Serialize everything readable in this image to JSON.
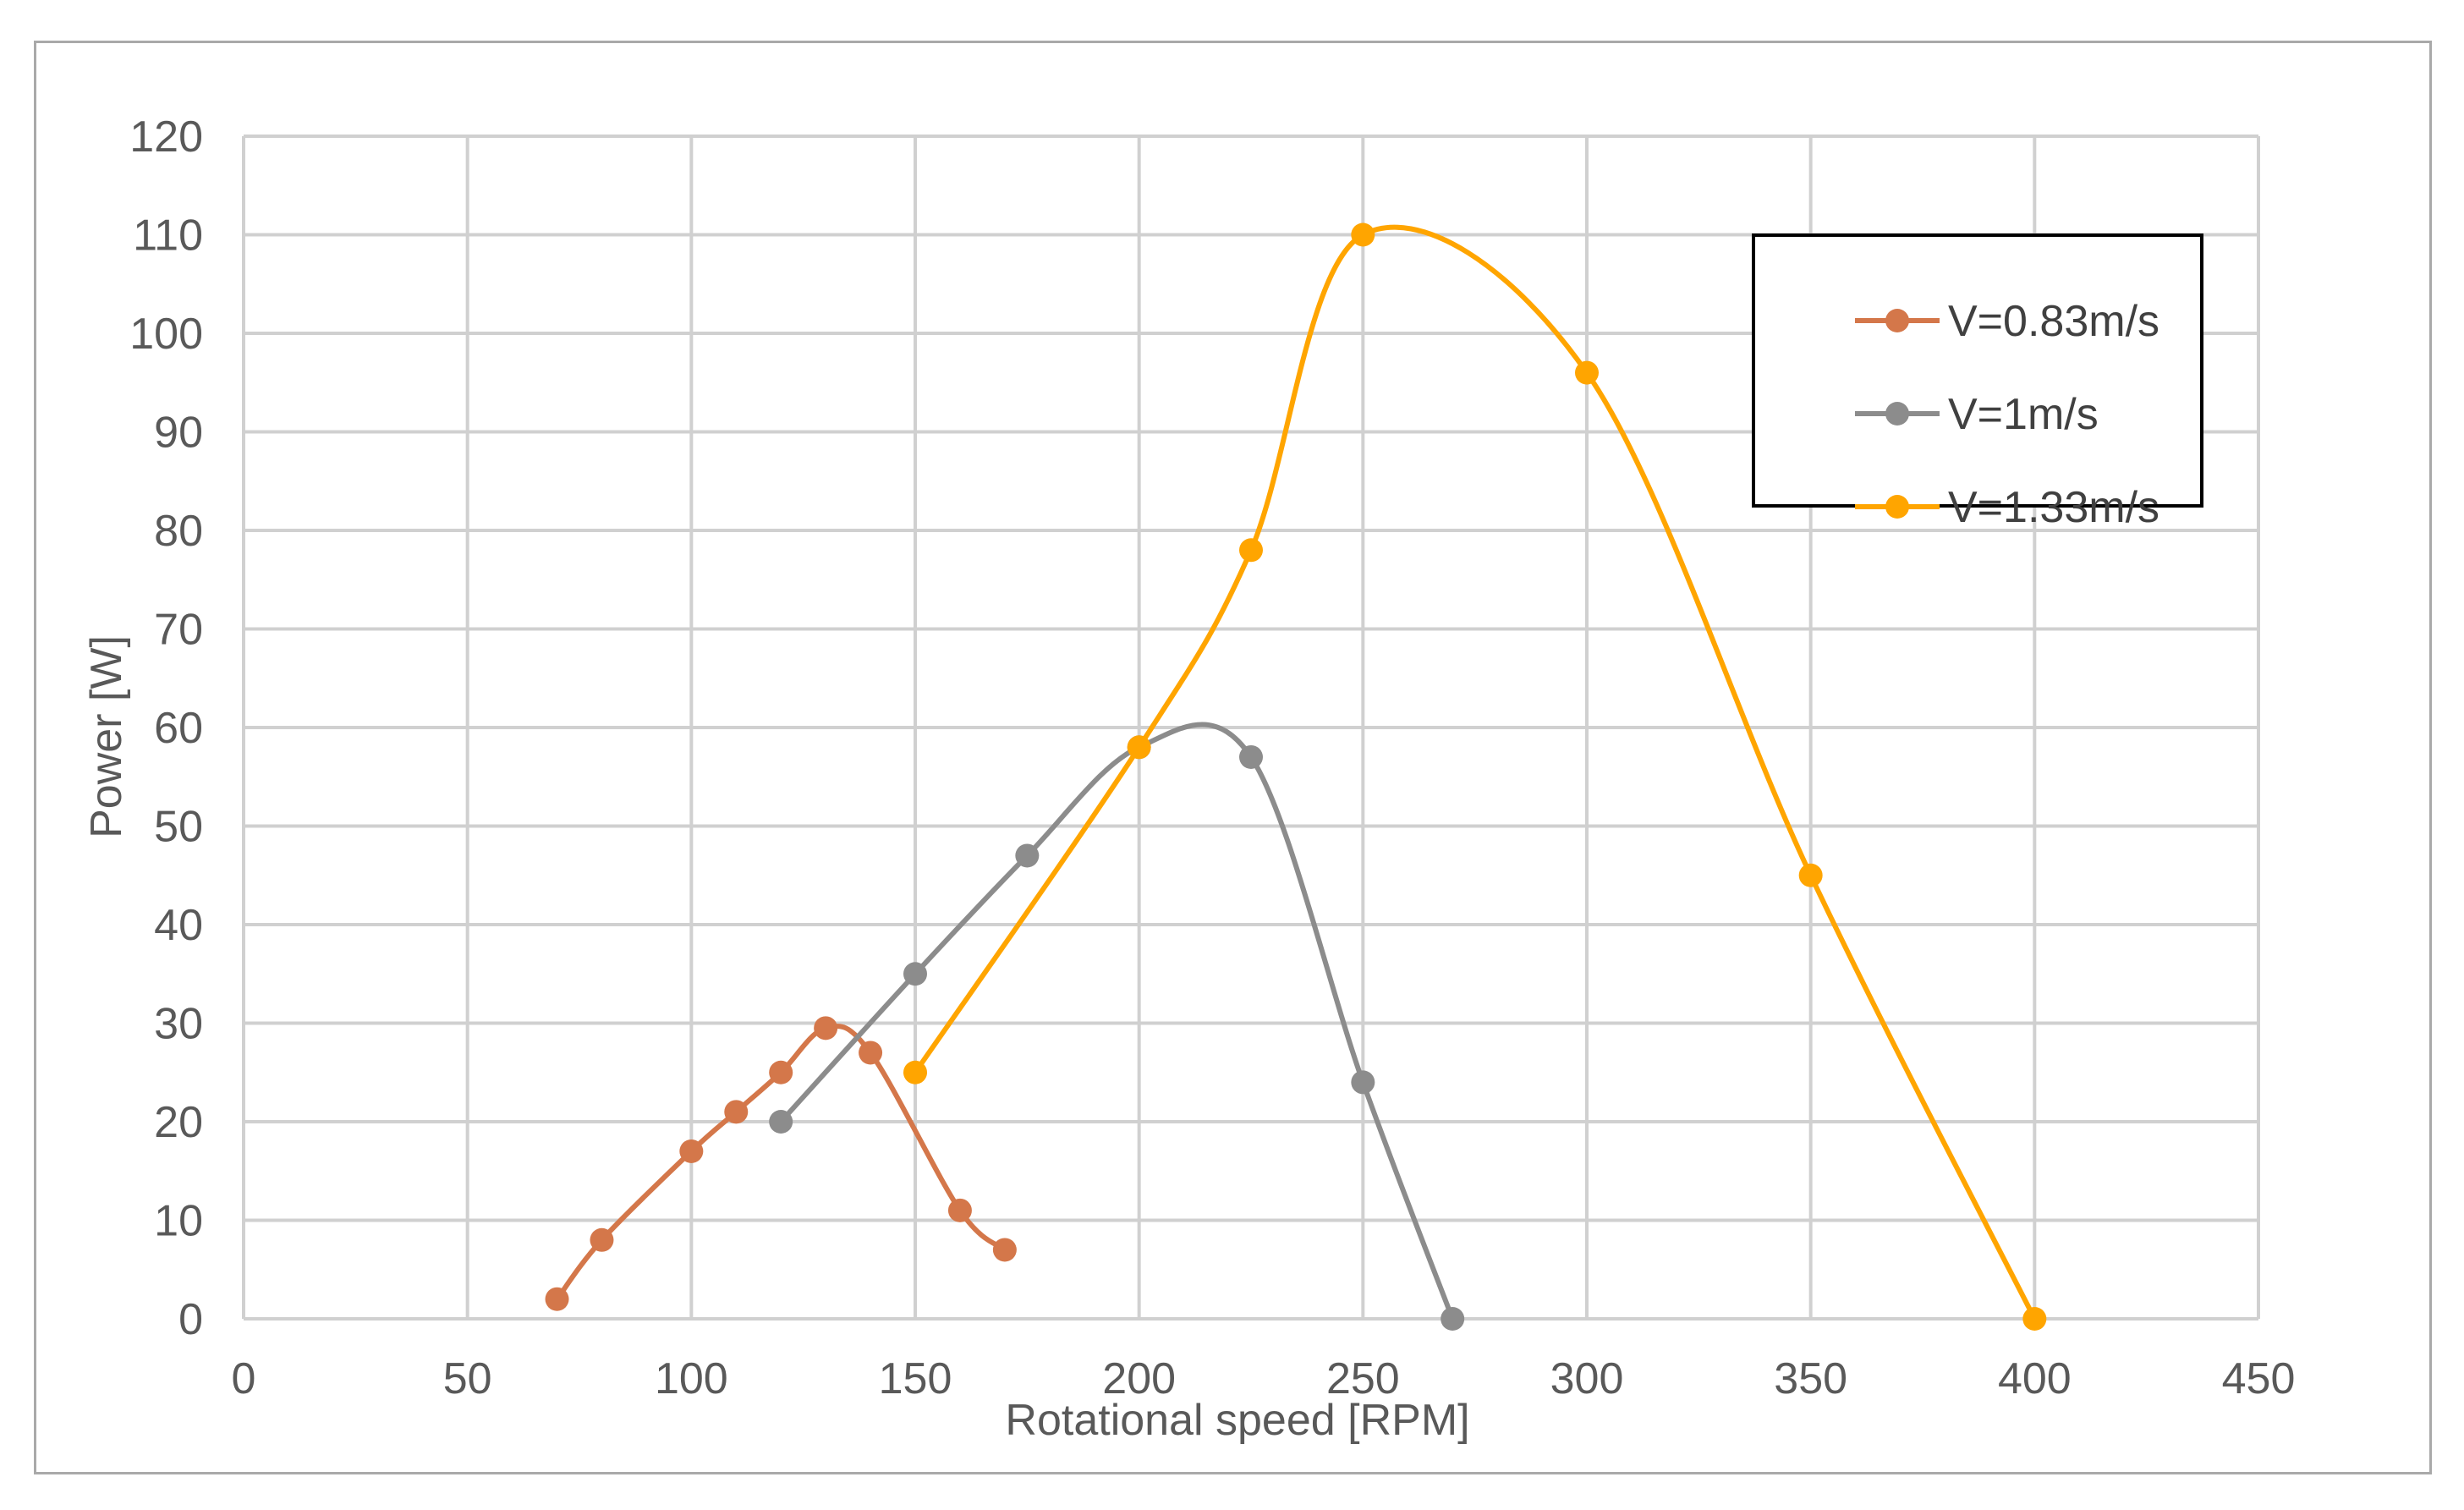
{
  "chart_data": {
    "type": "line",
    "title": "",
    "xlabel": "Rotational speed [RPM]",
    "ylabel": "Power [W]",
    "xlim": [
      0,
      450
    ],
    "ylim": [
      0,
      120
    ],
    "xticks": [
      "0",
      "50",
      "100",
      "150",
      "200",
      "250",
      "300",
      "350",
      "400",
      "450"
    ],
    "yticks": [
      "0",
      "10",
      "20",
      "30",
      "40",
      "50",
      "60",
      "70",
      "80",
      "90",
      "100",
      "110",
      "120"
    ],
    "grid": true,
    "legend_position": "top-right",
    "series": [
      {
        "name": "V=0.83m/s",
        "color": "#d4774a",
        "x": [
          70,
          80,
          100,
          110,
          120,
          130,
          140,
          160,
          170
        ],
        "y": [
          2,
          8,
          17,
          21,
          25,
          29.5,
          27,
          11,
          7
        ]
      },
      {
        "name": "V=1m/s",
        "color": "#8c8c8c",
        "x": [
          120,
          150,
          175,
          200,
          225,
          250,
          270
        ],
        "y": [
          20,
          35,
          47,
          58,
          57,
          24,
          0
        ]
      },
      {
        "name": "V=1.33m/s",
        "color": "#ffa500",
        "x": [
          150,
          200,
          225,
          250,
          300,
          350,
          400
        ],
        "y": [
          25,
          58,
          78,
          110,
          96,
          45,
          0
        ]
      }
    ]
  }
}
